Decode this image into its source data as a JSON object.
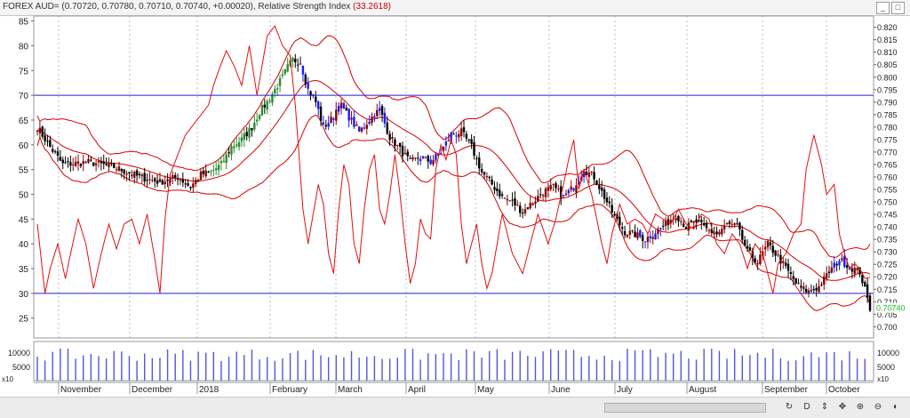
{
  "header": {
    "title": "FOREX AUD= (0.70720, 0.70780, 0.70710, 0.70740, +0.00020), Relative Strength Index",
    "rsi_value": "(33.2618)",
    "window_buttons": [
      "_",
      "□"
    ]
  },
  "chart_data": {
    "type": "line",
    "title": "FOREX AUD= (0.70720, 0.70780, 0.70710, 0.70740, +0.00020), Relative Strength Index (33.2618)",
    "x_months": [
      "November",
      "December",
      "2018",
      "February",
      "March",
      "April",
      "May",
      "June",
      "July",
      "August",
      "September",
      "October"
    ],
    "rsi_axis": {
      "ylim": [
        21,
        86
      ],
      "ticks": [
        25,
        30,
        35,
        40,
        45,
        50,
        55,
        60,
        65,
        70,
        75,
        80,
        85
      ]
    },
    "price_axis": {
      "ylim": [
        0.6955,
        0.8245
      ],
      "ticks": [
        "0.700",
        "0.705",
        "0.710",
        "0.715",
        "0.720",
        "0.725",
        "0.730",
        "0.735",
        "0.740",
        "0.745",
        "0.750",
        "0.755",
        "0.760",
        "0.765",
        "0.770",
        "0.775",
        "0.780",
        "0.785",
        "0.790",
        "0.795",
        "0.800",
        "0.805",
        "0.810",
        "0.815",
        "0.820"
      ]
    },
    "rsi_levels": [
      30,
      70
    ],
    "last_price_label": "0.70740",
    "price_close_points": [
      [
        0,
        0.78
      ],
      [
        5,
        0.772
      ],
      [
        10,
        0.765
      ],
      [
        20,
        0.766
      ],
      [
        30,
        0.764
      ],
      [
        40,
        0.76
      ],
      [
        48,
        0.758
      ],
      [
        55,
        0.76
      ],
      [
        60,
        0.756
      ],
      [
        64,
        0.761
      ],
      [
        68,
        0.762
      ],
      [
        72,
        0.765
      ],
      [
        76,
        0.772
      ],
      [
        80,
        0.775
      ],
      [
        84,
        0.78
      ],
      [
        87,
        0.786
      ],
      [
        90,
        0.79
      ],
      [
        93,
        0.795
      ],
      [
        96,
        0.8
      ],
      [
        98,
        0.804
      ],
      [
        100,
        0.807
      ],
      [
        103,
        0.806
      ],
      [
        106,
        0.795
      ],
      [
        109,
        0.79
      ],
      [
        112,
        0.78
      ],
      [
        116,
        0.784
      ],
      [
        118,
        0.79
      ],
      [
        122,
        0.784
      ],
      [
        126,
        0.778
      ],
      [
        130,
        0.783
      ],
      [
        134,
        0.787
      ],
      [
        138,
        0.776
      ],
      [
        142,
        0.771
      ],
      [
        146,
        0.766
      ],
      [
        150,
        0.768
      ],
      [
        154,
        0.766
      ],
      [
        158,
        0.77
      ],
      [
        162,
        0.777
      ],
      [
        166,
        0.778
      ],
      [
        170,
        0.772
      ],
      [
        174,
        0.762
      ],
      [
        178,
        0.757
      ],
      [
        182,
        0.752
      ],
      [
        186,
        0.75
      ],
      [
        190,
        0.746
      ],
      [
        194,
        0.75
      ],
      [
        198,
        0.754
      ],
      [
        202,
        0.756
      ],
      [
        206,
        0.752
      ],
      [
        210,
        0.756
      ],
      [
        214,
        0.763
      ],
      [
        218,
        0.76
      ],
      [
        222,
        0.752
      ],
      [
        226,
        0.744
      ],
      [
        230,
        0.738
      ],
      [
        234,
        0.737
      ],
      [
        238,
        0.735
      ],
      [
        242,
        0.738
      ],
      [
        246,
        0.741
      ],
      [
        250,
        0.745
      ],
      [
        254,
        0.74
      ],
      [
        258,
        0.742
      ],
      [
        262,
        0.739
      ],
      [
        266,
        0.737
      ],
      [
        270,
        0.741
      ],
      [
        274,
        0.74
      ],
      [
        278,
        0.73
      ],
      [
        282,
        0.726
      ],
      [
        286,
        0.733
      ],
      [
        290,
        0.728
      ],
      [
        294,
        0.722
      ],
      [
        298,
        0.716
      ],
      [
        302,
        0.714
      ],
      [
        306,
        0.716
      ],
      [
        310,
        0.722
      ],
      [
        314,
        0.727
      ],
      [
        318,
        0.724
      ],
      [
        322,
        0.722
      ],
      [
        326,
        0.7074
      ]
    ],
    "rsi_points": [
      [
        0,
        44
      ],
      [
        3,
        30
      ],
      [
        5,
        35
      ],
      [
        8,
        40
      ],
      [
        11,
        33
      ],
      [
        13,
        38
      ],
      [
        16,
        45
      ],
      [
        19,
        40
      ],
      [
        22,
        31
      ],
      [
        25,
        38
      ],
      [
        28,
        44
      ],
      [
        31,
        39
      ],
      [
        34,
        44
      ],
      [
        37,
        45
      ],
      [
        40,
        40
      ],
      [
        43,
        46
      ],
      [
        46,
        37
      ],
      [
        48,
        30
      ],
      [
        50,
        45
      ],
      [
        52,
        54
      ],
      [
        55,
        58
      ],
      [
        58,
        62
      ],
      [
        61,
        64
      ],
      [
        64,
        66
      ],
      [
        67,
        68
      ],
      [
        69,
        72
      ],
      [
        71,
        75
      ],
      [
        74,
        79
      ],
      [
        77,
        76
      ],
      [
        80,
        72
      ],
      [
        83,
        80
      ],
      [
        86,
        70
      ],
      [
        88,
        76
      ],
      [
        90,
        82
      ],
      [
        93,
        84
      ],
      [
        96,
        80
      ],
      [
        99,
        78
      ],
      [
        101,
        68
      ],
      [
        104,
        47
      ],
      [
        106,
        40
      ],
      [
        108,
        46
      ],
      [
        110,
        52
      ],
      [
        112,
        48
      ],
      [
        114,
        38
      ],
      [
        116,
        34
      ],
      [
        118,
        47
      ],
      [
        120,
        56
      ],
      [
        122,
        52
      ],
      [
        124,
        40
      ],
      [
        126,
        36
      ],
      [
        128,
        47
      ],
      [
        130,
        55
      ],
      [
        132,
        58
      ],
      [
        134,
        47
      ],
      [
        136,
        44
      ],
      [
        138,
        50
      ],
      [
        140,
        58
      ],
      [
        142,
        50
      ],
      [
        144,
        40
      ],
      [
        146,
        32
      ],
      [
        148,
        36
      ],
      [
        150,
        45
      ],
      [
        152,
        42
      ],
      [
        154,
        41
      ],
      [
        156,
        55
      ],
      [
        158,
        60
      ],
      [
        160,
        57
      ],
      [
        162,
        61
      ],
      [
        164,
        58
      ],
      [
        166,
        44
      ],
      [
        168,
        36
      ],
      [
        170,
        40
      ],
      [
        172,
        44
      ],
      [
        174,
        36
      ],
      [
        176,
        31
      ],
      [
        178,
        34
      ],
      [
        180,
        40
      ],
      [
        182,
        46
      ],
      [
        184,
        42
      ],
      [
        186,
        38
      ],
      [
        188,
        36
      ],
      [
        190,
        34
      ],
      [
        193,
        40
      ],
      [
        196,
        46
      ],
      [
        198,
        43
      ],
      [
        200,
        40
      ],
      [
        203,
        45
      ],
      [
        206,
        52
      ],
      [
        208,
        57
      ],
      [
        210,
        61
      ],
      [
        212,
        51
      ],
      [
        214,
        55
      ],
      [
        217,
        50
      ],
      [
        219,
        45
      ],
      [
        221,
        40
      ],
      [
        223,
        36
      ],
      [
        225,
        42
      ],
      [
        228,
        48
      ],
      [
        231,
        44
      ],
      [
        234,
        45
      ],
      [
        237,
        44
      ],
      [
        239,
        42
      ],
      [
        242,
        46
      ],
      [
        245,
        45
      ],
      [
        248,
        44
      ],
      [
        251,
        47
      ],
      [
        254,
        44
      ],
      [
        257,
        43
      ],
      [
        260,
        46
      ],
      [
        263,
        45
      ],
      [
        266,
        40
      ],
      [
        269,
        38
      ],
      [
        272,
        42
      ],
      [
        275,
        40
      ],
      [
        278,
        35
      ],
      [
        281,
        40
      ],
      [
        284,
        38
      ],
      [
        286,
        34
      ],
      [
        288,
        30
      ],
      [
        290,
        36
      ],
      [
        293,
        38
      ],
      [
        296,
        42
      ],
      [
        299,
        44
      ],
      [
        301,
        55
      ],
      [
        304,
        62
      ],
      [
        307,
        56
      ],
      [
        309,
        50
      ],
      [
        312,
        52
      ],
      [
        314,
        42
      ],
      [
        316,
        38
      ],
      [
        318,
        35
      ],
      [
        320,
        36
      ],
      [
        322,
        35
      ],
      [
        324,
        33
      ],
      [
        326,
        33.26
      ]
    ],
    "volume_axis": {
      "ticks": [
        "5000",
        "10000"
      ],
      "scale_label": "x10"
    }
  },
  "bottom_tools": [
    "↻",
    "D",
    "⇕",
    "✥",
    "⊕",
    "⊖",
    "◐"
  ]
}
